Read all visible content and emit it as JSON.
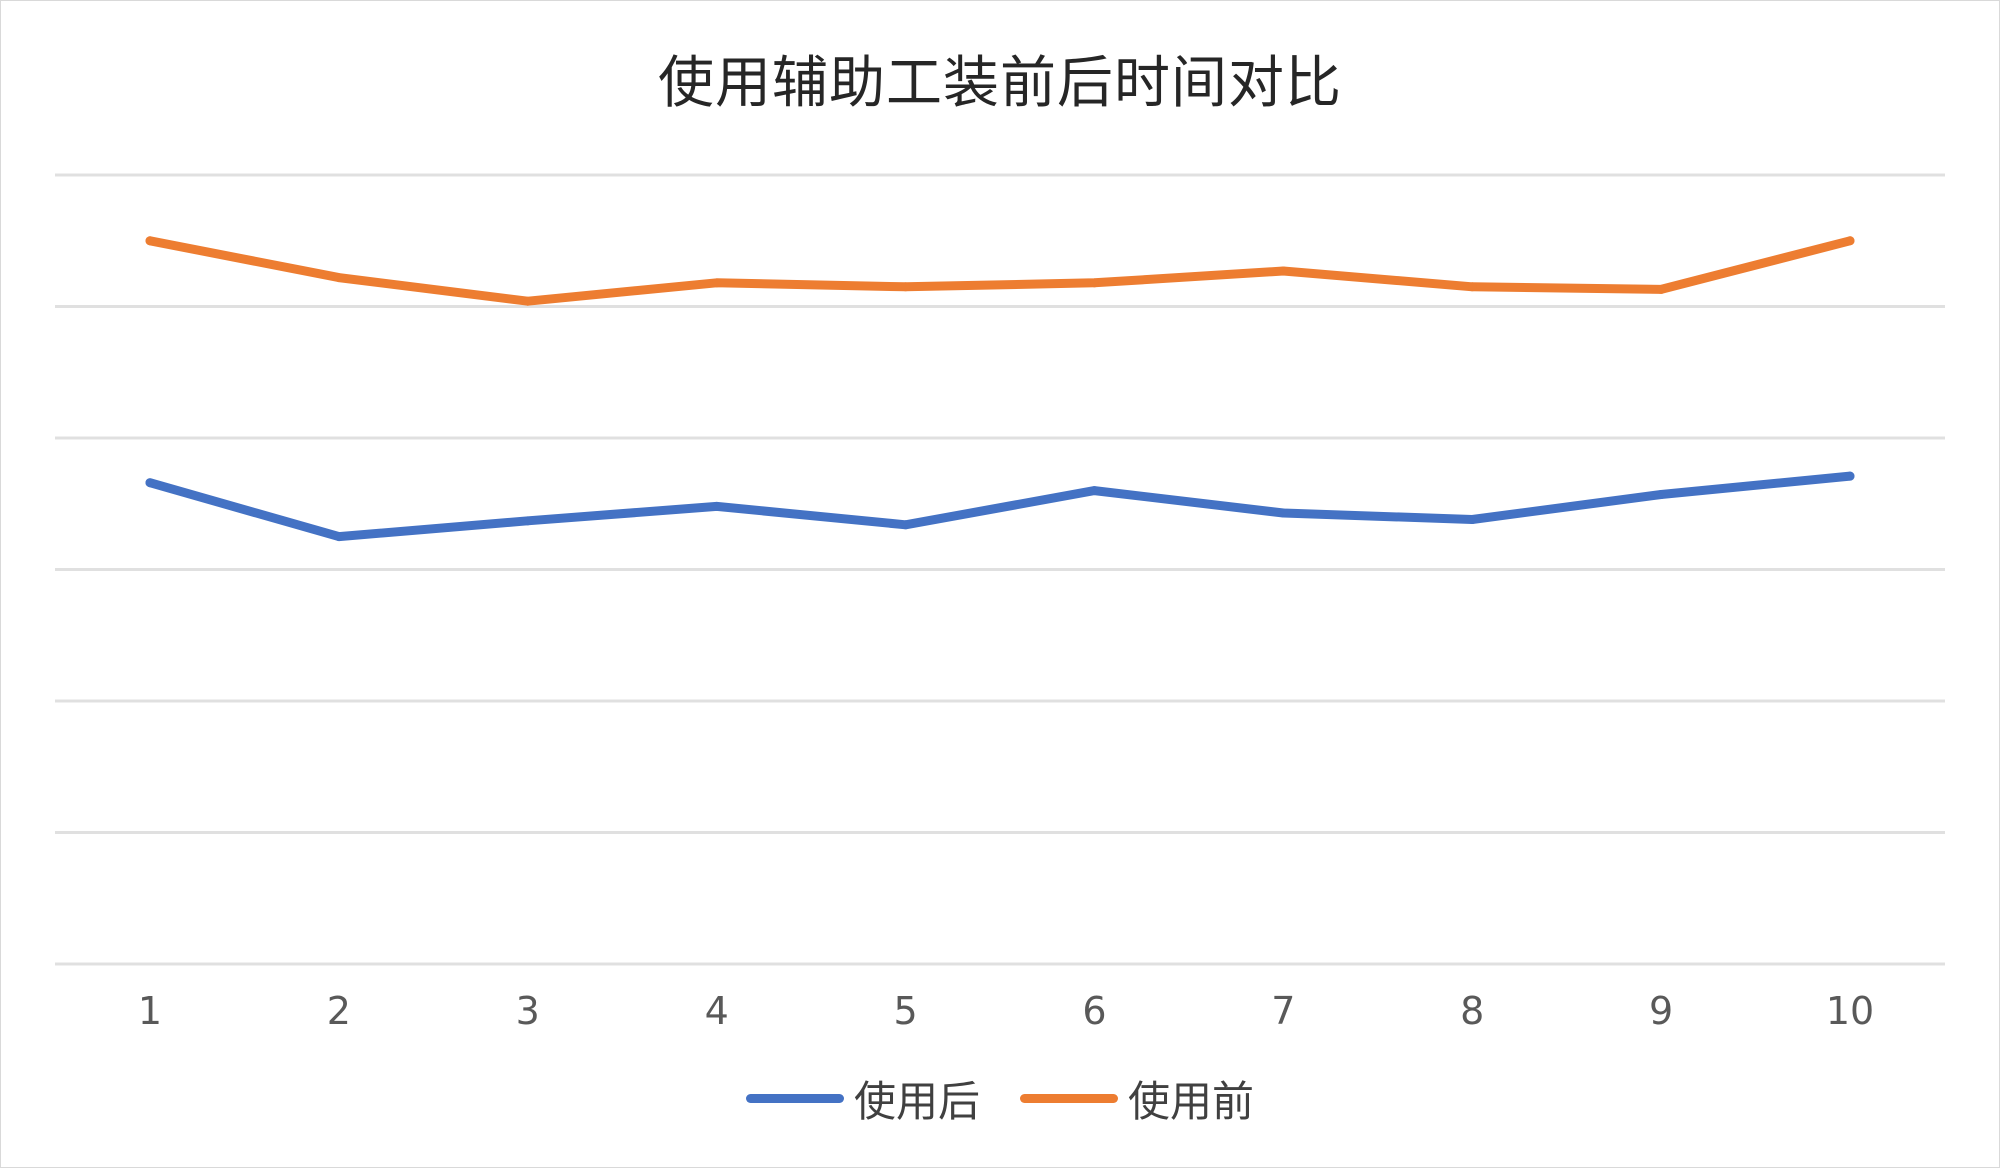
{
  "chart_data": {
    "type": "line",
    "title": "使用辅助工装前后时间对比",
    "categories": [
      "1",
      "2",
      "3",
      "4",
      "5",
      "6",
      "7",
      "8",
      "9",
      "10"
    ],
    "series": [
      {
        "name": "使用后",
        "color": "#4472c4",
        "values": [
          36.6,
          32.5,
          33.7,
          34.8,
          33.4,
          36.0,
          34.3,
          33.8,
          35.7,
          37.1
        ]
      },
      {
        "name": "使用前",
        "color": "#ed7d31",
        "values": [
          55.0,
          52.2,
          50.4,
          51.8,
          51.5,
          51.8,
          52.7,
          51.5,
          51.3,
          55.0
        ]
      }
    ],
    "ylim": [
      0,
      60
    ],
    "y_gridlines": [
      0,
      10,
      20,
      30,
      40,
      50,
      60
    ],
    "y_tick_labels_shown": false,
    "grid": true,
    "legend": "bottom"
  }
}
